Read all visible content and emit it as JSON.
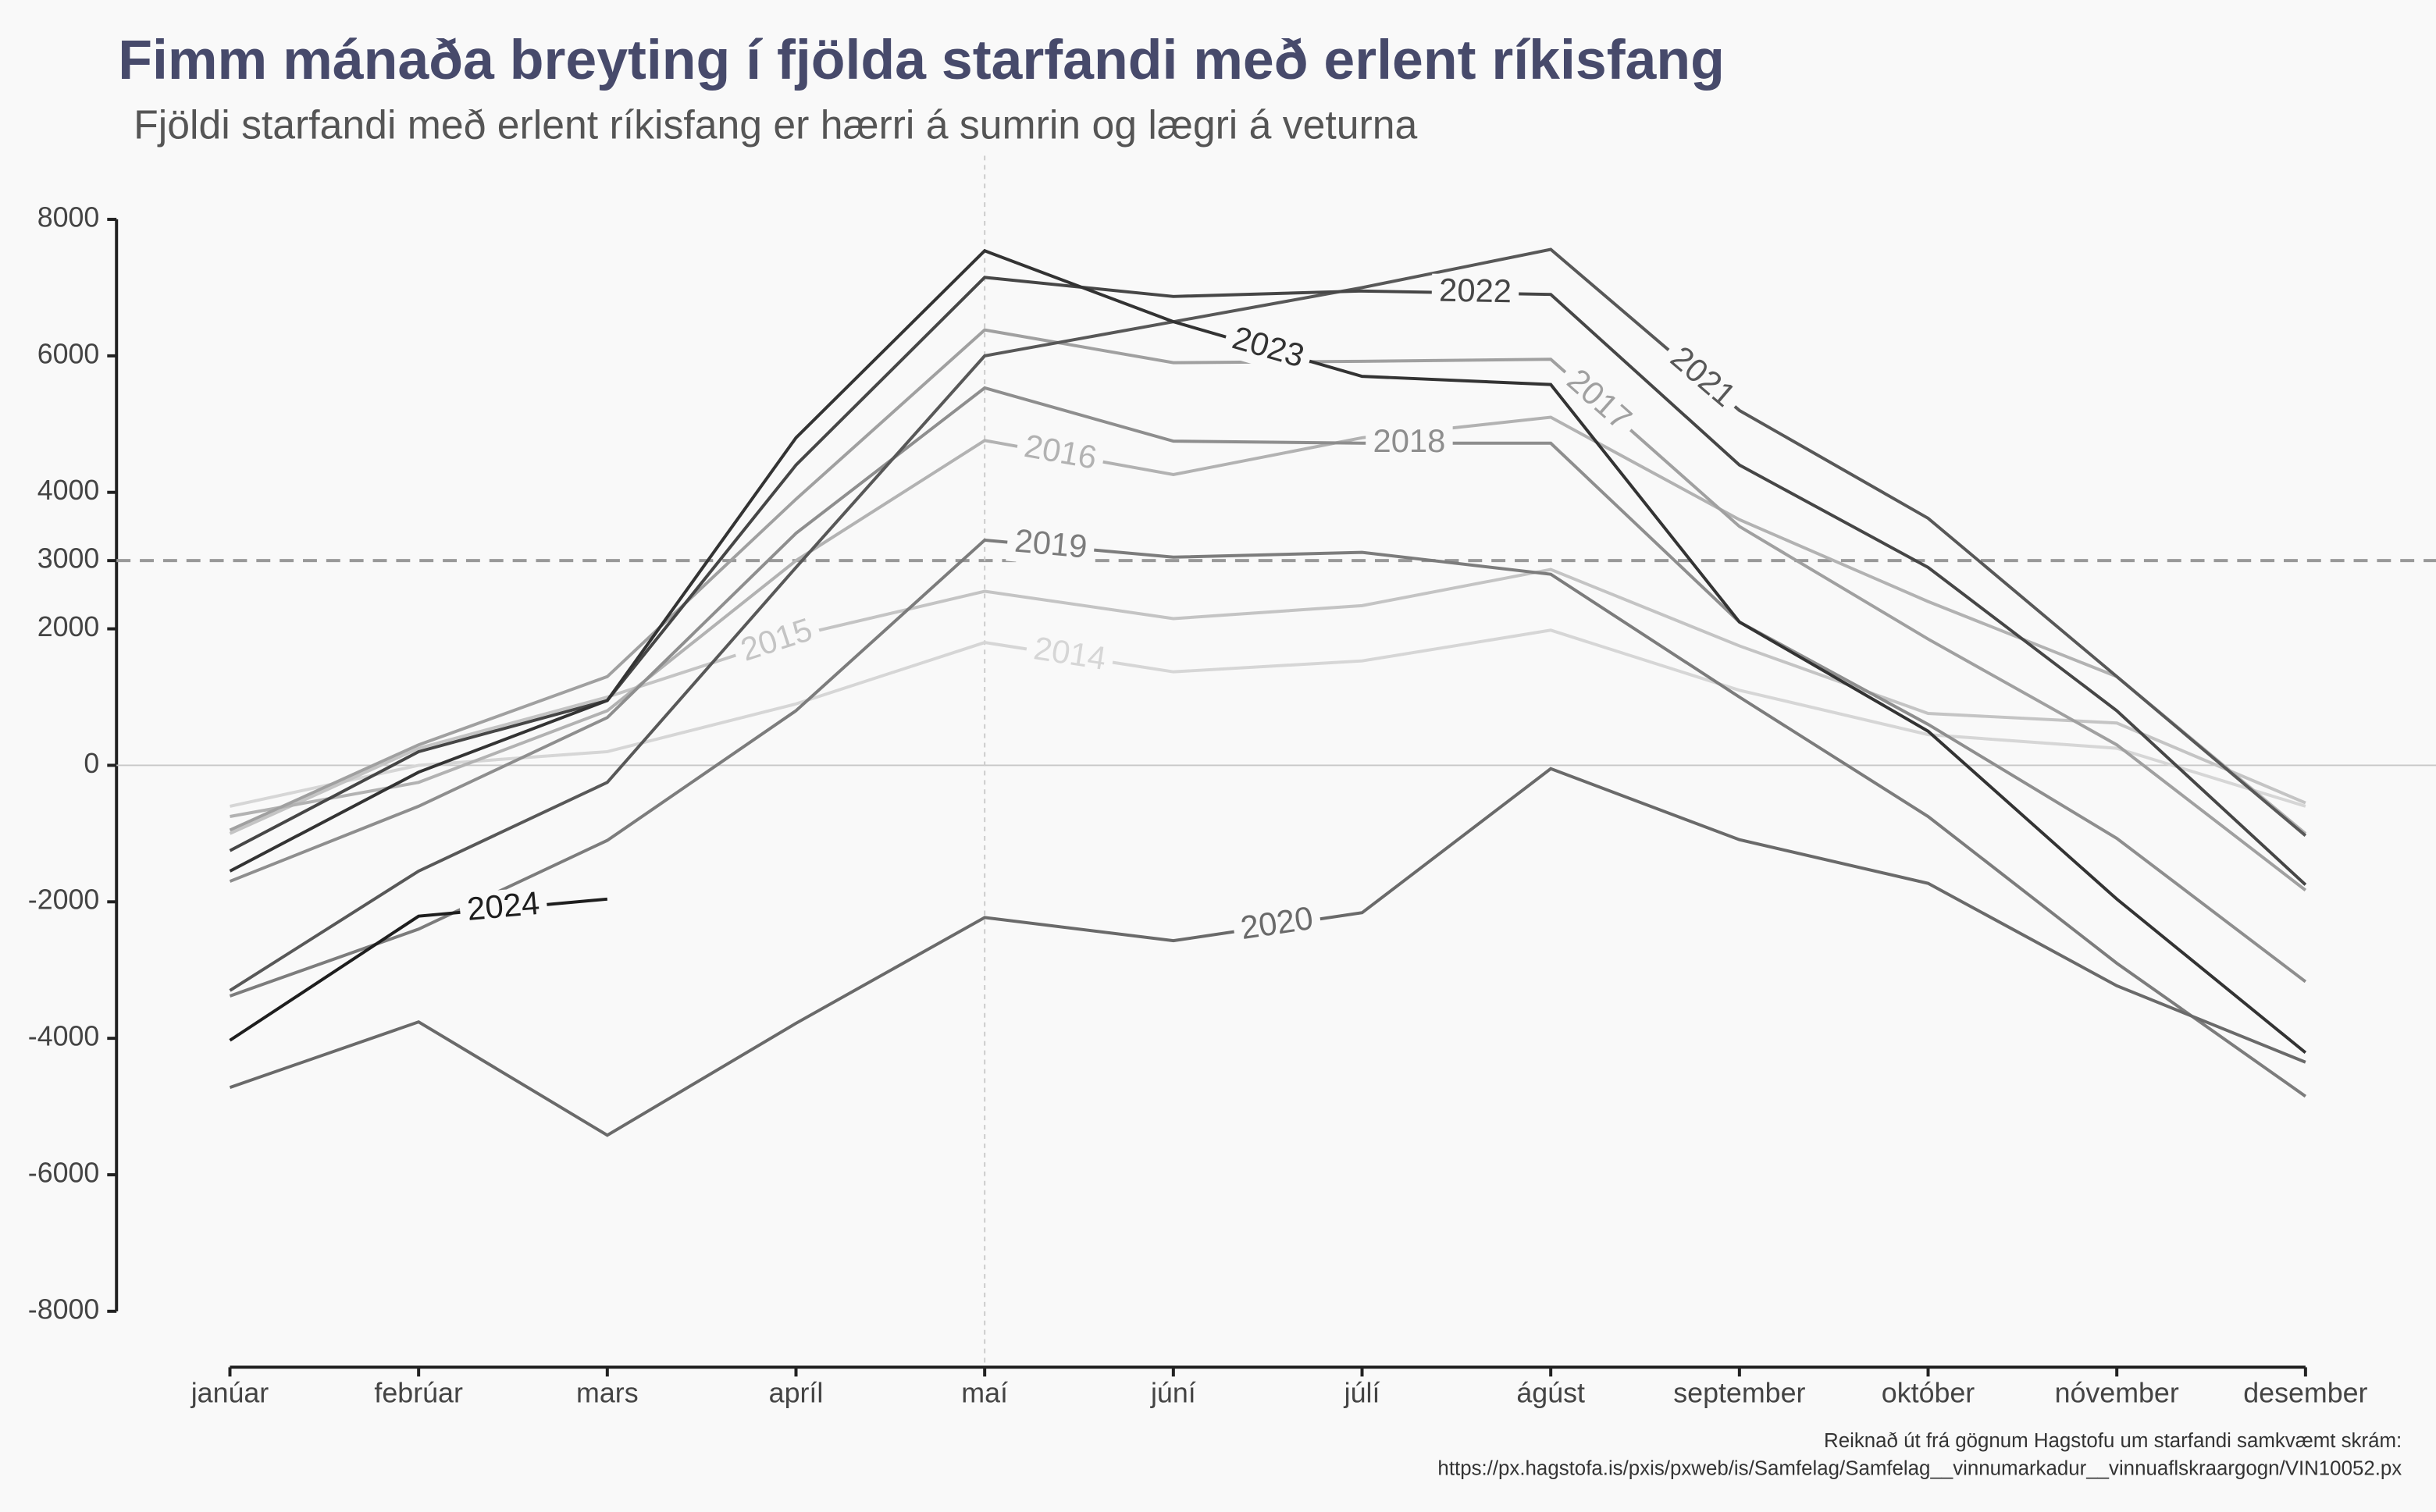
{
  "chart_data": {
    "type": "line",
    "title": "Fimm mánaða breyting í fjölda starfandi með erlent ríkisfang",
    "subtitle": "Fjöldi starfandi með erlent ríkisfang er hærri á sumrin og lægri á veturna",
    "caption": [
      "Reiknað út frá gögnum Hagstofu um starfandi samkvæmt skrám:",
      "https://px.hagstofa.is/pxis/pxweb/is/Samfelag/Samfelag__vinnumarkadur__vinnuaflskraargogn/VIN10052.px"
    ],
    "categories": [
      "janúar",
      "febrúar",
      "mars",
      "apríl",
      "maí",
      "júní",
      "júlí",
      "ágúst",
      "september",
      "október",
      "nóvember",
      "desember"
    ],
    "ylim": [
      -8000,
      8000
    ],
    "yticks": [
      8000,
      6000,
      4000,
      3000,
      2000,
      0,
      -2000,
      -4000,
      -6000,
      -8000
    ],
    "hline": 3000,
    "vline": "maí",
    "series": [
      {
        "name": "2014",
        "color": "#d6d6d6",
        "values": [
          -600,
          0,
          200,
          900,
          1800,
          1370,
          1530,
          1980,
          1100,
          450,
          250,
          -600
        ]
      },
      {
        "name": "2015",
        "color": "#c4c4c4",
        "values": [
          -1000,
          250,
          1000,
          1900,
          2550,
          2150,
          2340,
          2870,
          1750,
          760,
          620,
          -550
        ]
      },
      {
        "name": "2016",
        "color": "#b2b2b2",
        "values": [
          -750,
          -250,
          800,
          3000,
          4760,
          4260,
          4800,
          5100,
          3600,
          2400,
          1300,
          -1000
        ]
      },
      {
        "name": "2017",
        "color": "#a0a0a0",
        "values": [
          -950,
          300,
          1300,
          3900,
          6380,
          5900,
          5920,
          5950,
          3500,
          1850,
          300,
          -1830
        ]
      },
      {
        "name": "2018",
        "color": "#8e8e8e",
        "values": [
          -1700,
          -600,
          700,
          3400,
          5530,
          4750,
          4720,
          4720,
          2100,
          600,
          -1070,
          -3170
        ]
      },
      {
        "name": "2019",
        "color": "#7c7c7c",
        "values": [
          -3380,
          -2400,
          -1100,
          800,
          3300,
          3050,
          3120,
          2800,
          1000,
          -750,
          -2900,
          -4850
        ]
      },
      {
        "name": "2020",
        "color": "#6a6a6a",
        "values": [
          -4720,
          -3760,
          -5420,
          -3780,
          -2230,
          -2570,
          -2160,
          -50,
          -1090,
          -1730,
          -3230,
          -4350
        ]
      },
      {
        "name": "2021",
        "color": "#585858",
        "values": [
          -3300,
          -1550,
          -250,
          2900,
          6000,
          6500,
          7000,
          7560,
          5200,
          3620,
          1300,
          -1030
        ]
      },
      {
        "name": "2022",
        "color": "#464646",
        "values": [
          -1250,
          200,
          950,
          4400,
          7150,
          6870,
          6950,
          6900,
          4400,
          2900,
          800,
          -1750
        ]
      },
      {
        "name": "2023",
        "color": "#333333",
        "values": [
          -1550,
          -100,
          950,
          4800,
          7540,
          6500,
          5700,
          5580,
          2100,
          500,
          -1960,
          -4210
        ]
      },
      {
        "name": "2024",
        "color": "#1e1e1e",
        "values": [
          -4030,
          -2210,
          -1960,
          null,
          null,
          null,
          null,
          null,
          null,
          null,
          null,
          null
        ]
      }
    ]
  }
}
